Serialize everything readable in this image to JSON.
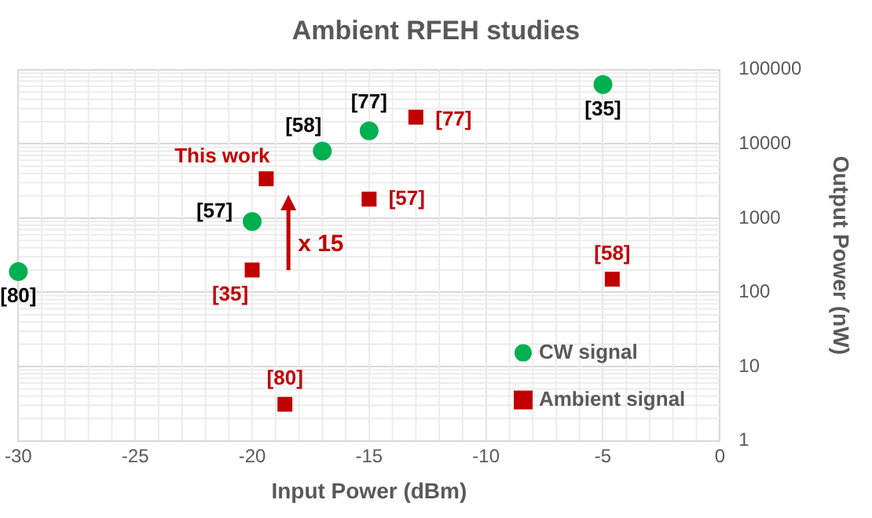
{
  "chart_data": {
    "type": "scatter",
    "title": "Ambient RFEH studies",
    "xlabel": "Input Power (dBm)",
    "ylabel": "Output Power (nW)",
    "series": [
      {
        "name": "CW signal",
        "color": "#00b050",
        "marker": "circle",
        "x": [
          -30,
          -20,
          -17,
          -15,
          -5
        ],
        "values": [
          190,
          900,
          8000,
          15000,
          63000
        ]
      },
      {
        "name": "Ambient signal",
        "color": "#c00000",
        "marker": "square",
        "x": [
          -19.4,
          -20,
          -18.6,
          -15,
          -13,
          -4.6
        ],
        "values": [
          3400,
          200,
          3.1,
          1800,
          23000,
          150
        ]
      }
    ],
    "annotations": [
      {
        "text": "[80]",
        "x": -30,
        "y": 190
      },
      {
        "text": "[57]",
        "x": -20,
        "y": 900
      },
      {
        "text": "[58]",
        "x": -17,
        "y": 8000
      },
      {
        "text": "[77]",
        "x": -15,
        "y": 15000
      },
      {
        "text": "[35]",
        "x": -5,
        "y": 63000
      },
      {
        "text": "This work",
        "x": -19.4,
        "y": 3400
      },
      {
        "text": "[35]",
        "x": -20,
        "y": 200
      },
      {
        "text": "[80]",
        "x": -18.6,
        "y": 3.1
      },
      {
        "text": "[57]",
        "x": -15,
        "y": 1800
      },
      {
        "text": "[77]",
        "x": -13,
        "y": 23000
      },
      {
        "text": "[58]",
        "x": -4.6,
        "y": 150
      },
      "x 15"
    ],
    "xlim": [
      -30,
      0
    ],
    "xticks": [
      -30,
      -25,
      -20,
      -15,
      -10,
      -5,
      0
    ],
    "ylim": [
      1,
      100000
    ],
    "yticks": [
      1,
      10,
      100,
      1000,
      10000,
      100000
    ],
    "log": "y",
    "grid": true,
    "legend": "bottom right"
  }
}
